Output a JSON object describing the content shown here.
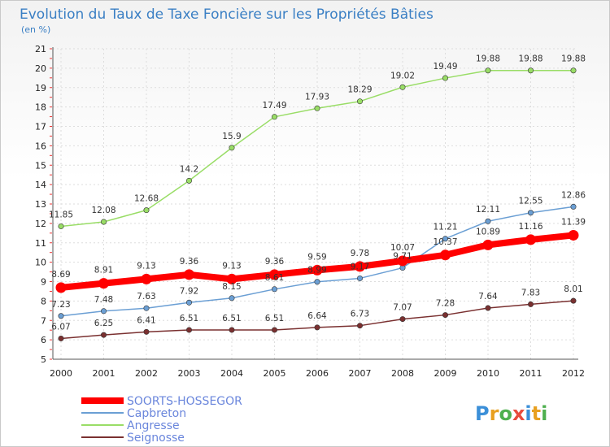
{
  "chart_data": {
    "type": "line",
    "title": "Evolution du Taux de Taxe Foncière sur les Propriétés Bâties",
    "subtitle": "(en %)",
    "x": [
      "2000",
      "2001",
      "2002",
      "2003",
      "2004",
      "2005",
      "2006",
      "2007",
      "2008",
      "2009",
      "2010",
      "2011",
      "2012"
    ],
    "ylim": [
      5,
      21
    ],
    "yticks": [
      5,
      6,
      7,
      8,
      9,
      10,
      11,
      12,
      13,
      14,
      15,
      16,
      17,
      18,
      19,
      20,
      21
    ],
    "grid": true,
    "legend_position": "bottom-left",
    "series": [
      {
        "name": "SOORTS-HOSSEGOR",
        "color": "#ff0000",
        "values": [
          8.69,
          8.91,
          9.13,
          9.36,
          9.13,
          9.36,
          9.59,
          9.78,
          10.07,
          10.37,
          10.89,
          11.16,
          11.39
        ],
        "labels": [
          "8.69",
          "8.91",
          "9.13",
          "9.36",
          "9.13",
          "9.36",
          "9.59",
          "9.78",
          "10.07",
          "10.37",
          "10.89",
          "11.16",
          "11.39"
        ]
      },
      {
        "name": "Capbreton",
        "color": "#6b9fd4",
        "values": [
          7.23,
          7.48,
          7.63,
          7.92,
          8.15,
          8.61,
          8.99,
          9.17,
          9.71,
          11.21,
          12.11,
          12.55,
          12.86
        ],
        "labels": [
          "7.23",
          "7.48",
          "7.63",
          "7.92",
          "8.15",
          "8.61",
          "8.99",
          "9.17",
          "9.71",
          "11.21",
          "12.11",
          "12.55",
          "12.86"
        ]
      },
      {
        "name": "Angresse",
        "color": "#99dd66",
        "values": [
          11.85,
          12.08,
          12.68,
          14.2,
          15.9,
          17.49,
          17.93,
          18.29,
          19.02,
          19.49,
          19.88,
          19.88,
          19.88
        ],
        "labels": [
          "11.85",
          "12.08",
          "12.68",
          "14.2",
          "15.9",
          "17.49",
          "17.93",
          "18.29",
          "19.02",
          "19.49",
          "19.88",
          "19.88",
          "19.88"
        ]
      },
      {
        "name": "Seignosse",
        "color": "#7a3030",
        "values": [
          6.07,
          6.25,
          6.41,
          6.51,
          6.51,
          6.51,
          6.64,
          6.73,
          7.07,
          7.28,
          7.64,
          7.83,
          8.01
        ],
        "labels": [
          "6.07",
          "6.25",
          "6.41",
          "6.51",
          "6.51",
          "6.51",
          "6.64",
          "6.73",
          "7.07",
          "7.28",
          "7.64",
          "7.83",
          "8.01"
        ]
      }
    ]
  },
  "logo": {
    "text": "Proxiti",
    "letters": [
      "P",
      "r",
      "o",
      "x",
      "i",
      "t",
      "i"
    ],
    "colors": [
      "#3b8fd8",
      "#e8a020",
      "#4fb04f",
      "#e84c3d",
      "#3b8fd8",
      "#e8a020",
      "#4fb04f"
    ]
  }
}
